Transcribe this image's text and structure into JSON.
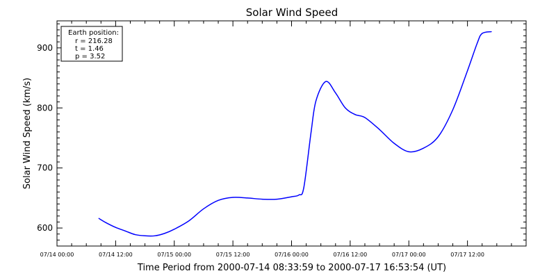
{
  "chart_data": {
    "type": "line",
    "title": "Solar Wind Speed",
    "xlabel": "Time Period from 2000-07-14 08:33:59 to 2000-07-17 16:53:54 (UT)",
    "ylabel": "Solar Wind Speed (km/s)",
    "x_tick_labels": [
      "07/14 00:00",
      "07/14 12:00",
      "07/15 00:00",
      "07/15 12:00",
      "07/16 00:00",
      "07/16 12:00",
      "07/17 00:00",
      "07/17 12:00"
    ],
    "y_ticks": [
      600,
      700,
      800,
      900
    ],
    "xlim": [
      "2000-07-14 00:00",
      "2000-07-18 00:00"
    ],
    "ylim": [
      570,
      945
    ],
    "grid": false,
    "series": [
      {
        "color": "#0000ff",
        "x": [
          "2000-07-14 08:34",
          "2000-07-14 10:00",
          "2000-07-14 12:00",
          "2000-07-14 14:00",
          "2000-07-14 16:00",
          "2000-07-14 18:00",
          "2000-07-14 20:00",
          "2000-07-14 22:00",
          "2000-07-15 00:00",
          "2000-07-15 03:00",
          "2000-07-15 06:00",
          "2000-07-15 09:00",
          "2000-07-15 12:00",
          "2000-07-15 15:00",
          "2000-07-15 18:00",
          "2000-07-15 21:00",
          "2000-07-16 00:00",
          "2000-07-16 01:30",
          "2000-07-16 02:30",
          "2000-07-16 04:00",
          "2000-07-16 05:00",
          "2000-07-16 07:00",
          "2000-07-16 09:00",
          "2000-07-16 11:00",
          "2000-07-16 13:00",
          "2000-07-16 15:00",
          "2000-07-16 18:00",
          "2000-07-16 21:00",
          "2000-07-17 00:00",
          "2000-07-17 03:00",
          "2000-07-17 06:00",
          "2000-07-17 09:00",
          "2000-07-17 12:00",
          "2000-07-17 14:00",
          "2000-07-17 15:00",
          "2000-07-17 16:54"
        ],
        "y": [
          616,
          609,
          601,
          595,
          589,
          587,
          587,
          591,
          598,
          612,
          632,
          646,
          651,
          650,
          648,
          648,
          652,
          655,
          667,
          760,
          812,
          844,
          825,
          800,
          789,
          784,
          764,
          741,
          727,
          733,
          752,
          797,
          862,
          908,
          924,
          927
        ]
      }
    ],
    "annotation": {
      "title": "Earth position:",
      "lines": [
        "r = 216.28",
        "t = 1.46",
        "p = 3.52"
      ]
    }
  }
}
